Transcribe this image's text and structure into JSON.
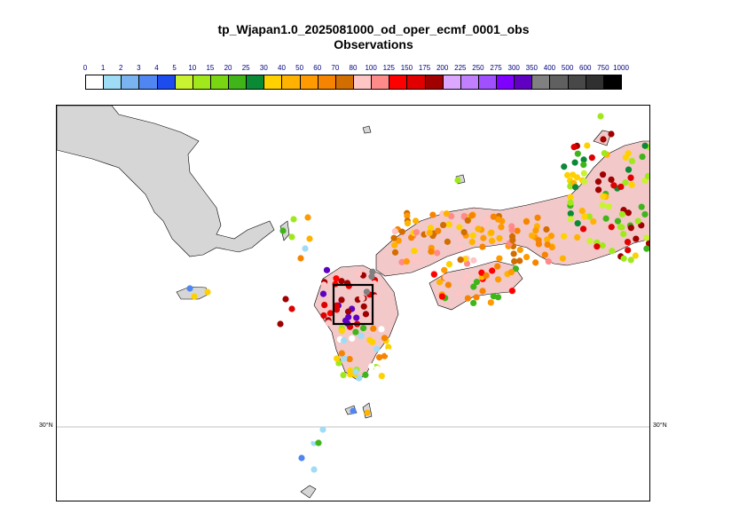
{
  "title": "tp_Wjapan1.0_2025081000_od_oper_ecmf_0001_obs",
  "subtitle": "Observations",
  "legend": {
    "labels": [
      "0",
      "1",
      "2",
      "3",
      "4",
      "5",
      "10",
      "15",
      "20",
      "25",
      "30",
      "40",
      "50",
      "60",
      "70",
      "80",
      "100",
      "125",
      "150",
      "175",
      "200",
      "225",
      "250",
      "275",
      "300",
      "350",
      "400",
      "500",
      "600",
      "750",
      "1000"
    ],
    "colors": [
      "#ffffff",
      "#9fdcf5",
      "#79b4f0",
      "#4f86f2",
      "#1c4bef",
      "#c9f230",
      "#a0e81c",
      "#79d613",
      "#3fb51a",
      "#0a8a35",
      "#ffd100",
      "#ffb300",
      "#ff9a00",
      "#f68400",
      "#d26d00",
      "#ffc4c4",
      "#ff8a8a",
      "#ff0000",
      "#e00000",
      "#a00000",
      "#dca8ff",
      "#c080ff",
      "#a050ff",
      "#8000ff",
      "#6000c0",
      "#808080",
      "#606060",
      "#484848",
      "#303030",
      "#000000"
    ]
  },
  "map": {
    "lat_label": "30°N",
    "highlight_box": true,
    "station_categories_present": [
      "0",
      "1",
      "2",
      "3",
      "5",
      "10",
      "20",
      "25",
      "30",
      "40",
      "50",
      "60",
      "70",
      "80",
      "100",
      "125",
      "150",
      "175",
      "200",
      "250",
      "300",
      "350"
    ]
  }
}
